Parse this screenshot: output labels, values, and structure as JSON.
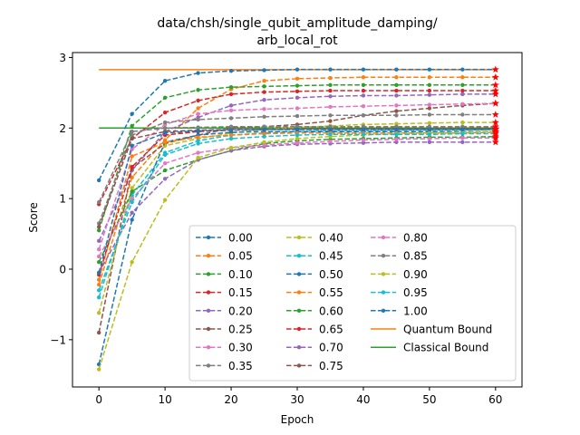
{
  "chart_data": {
    "type": "line",
    "title_line1": "data/chsh/single_qubit_amplitude_damping/",
    "title_line2": "arb_local_rot",
    "xlabel": "Epoch",
    "ylabel": "Score",
    "xlim": [
      -4,
      64
    ],
    "ylim": [
      -1.67,
      3.07
    ],
    "xticks": [
      0,
      10,
      20,
      30,
      40,
      50,
      60
    ],
    "yticks": [
      -1,
      0,
      1,
      2,
      3
    ],
    "x": [
      0,
      5,
      10,
      15,
      20,
      25,
      30,
      35,
      40,
      45,
      50,
      55,
      60
    ],
    "legend_position": "lower-right",
    "legend_columns": 3,
    "grid": false,
    "series": [
      {
        "name": "0.00",
        "color": "#1f77b4",
        "values": [
          1.26,
          2.2,
          2.67,
          2.78,
          2.81,
          2.82,
          2.83,
          2.83,
          2.83,
          2.83,
          2.83,
          2.83,
          2.83
        ]
      },
      {
        "name": "0.05",
        "color": "#ff7f0e",
        "values": [
          -0.22,
          1.3,
          1.83,
          2.28,
          2.55,
          2.67,
          2.7,
          2.71,
          2.72,
          2.72,
          2.72,
          2.72,
          2.72
        ]
      },
      {
        "name": "0.10",
        "color": "#2ca02c",
        "values": [
          0.55,
          2.03,
          2.43,
          2.54,
          2.58,
          2.59,
          2.6,
          2.61,
          2.61,
          2.61,
          2.61,
          2.61,
          2.61
        ]
      },
      {
        "name": "0.15",
        "color": "#d62728",
        "values": [
          0.92,
          1.85,
          2.22,
          2.39,
          2.48,
          2.51,
          2.52,
          2.53,
          2.53,
          2.53,
          2.53,
          2.53,
          2.53
        ]
      },
      {
        "name": "0.20",
        "color": "#9467bd",
        "values": [
          0.4,
          1.4,
          1.95,
          2.15,
          2.32,
          2.4,
          2.43,
          2.45,
          2.46,
          2.46,
          2.47,
          2.48,
          2.48
        ]
      },
      {
        "name": "0.25",
        "color": "#8c564b",
        "values": [
          -0.9,
          1.43,
          1.78,
          1.9,
          2.0,
          2.02,
          2.05,
          2.1,
          2.18,
          2.24,
          2.28,
          2.32,
          2.35
        ]
      },
      {
        "name": "0.30",
        "color": "#e377c2",
        "values": [
          0.28,
          1.7,
          2.05,
          2.2,
          2.25,
          2.27,
          2.28,
          2.3,
          2.31,
          2.32,
          2.33,
          2.34,
          2.35
        ]
      },
      {
        "name": "0.35",
        "color": "#7f7f7f",
        "values": [
          0.65,
          1.9,
          2.08,
          2.12,
          2.14,
          2.16,
          2.17,
          2.18,
          2.18,
          2.18,
          2.19,
          2.19,
          2.19
        ]
      },
      {
        "name": "0.40",
        "color": "#bcbd22",
        "values": [
          -0.62,
          1.15,
          1.75,
          1.85,
          1.93,
          1.98,
          2.01,
          2.03,
          2.05,
          2.06,
          2.07,
          2.08,
          2.08
        ]
      },
      {
        "name": "0.45",
        "color": "#17becf",
        "values": [
          -0.4,
          1.05,
          1.65,
          1.82,
          1.9,
          1.93,
          1.95,
          1.96,
          1.96,
          1.97,
          1.97,
          1.97,
          1.98
        ]
      },
      {
        "name": "0.50",
        "color": "#1f77b4",
        "values": [
          -1.35,
          0.7,
          1.8,
          1.9,
          1.94,
          1.95,
          1.95,
          1.95,
          1.95,
          1.95,
          1.95,
          1.95,
          1.95
        ]
      },
      {
        "name": "0.55",
        "color": "#ff7f0e",
        "values": [
          -0.15,
          1.6,
          1.8,
          1.87,
          1.9,
          1.92,
          1.93,
          1.93,
          1.93,
          1.93,
          1.93,
          1.93,
          1.94
        ]
      },
      {
        "name": "0.60",
        "color": "#2ca02c",
        "values": [
          0.1,
          1.1,
          1.4,
          1.55,
          1.68,
          1.78,
          1.82,
          1.84,
          1.85,
          1.86,
          1.87,
          1.87,
          1.88
        ]
      },
      {
        "name": "0.65",
        "color": "#d62728",
        "values": [
          -0.08,
          1.45,
          1.9,
          1.95,
          1.97,
          1.98,
          1.98,
          1.98,
          1.99,
          1.99,
          1.99,
          1.99,
          1.99
        ]
      },
      {
        "name": "0.70",
        "color": "#9467bd",
        "values": [
          -0.05,
          0.8,
          1.28,
          1.55,
          1.68,
          1.74,
          1.77,
          1.78,
          1.79,
          1.8,
          1.8,
          1.8,
          1.8
        ]
      },
      {
        "name": "0.75",
        "color": "#8c564b",
        "values": [
          0.6,
          1.85,
          1.95,
          1.97,
          1.98,
          1.98,
          1.99,
          1.99,
          1.99,
          1.99,
          1.99,
          1.99,
          1.99
        ]
      },
      {
        "name": "0.80",
        "color": "#e377c2",
        "values": [
          0.18,
          1.0,
          1.5,
          1.65,
          1.72,
          1.76,
          1.79,
          1.81,
          1.83,
          1.84,
          1.85,
          1.86,
          1.86
        ]
      },
      {
        "name": "0.85",
        "color": "#7f7f7f",
        "values": [
          0.95,
          1.95,
          2.0,
          2.01,
          2.02,
          2.02,
          2.02,
          2.02,
          2.02,
          2.02,
          2.02,
          2.02,
          2.02
        ]
      },
      {
        "name": "0.90",
        "color": "#bcbd22",
        "values": [
          -1.42,
          0.1,
          0.98,
          1.58,
          1.72,
          1.8,
          1.85,
          1.88,
          1.9,
          1.92,
          1.93,
          1.94,
          1.95
        ]
      },
      {
        "name": "0.95",
        "color": "#17becf",
        "values": [
          -0.3,
          0.95,
          1.62,
          1.78,
          1.85,
          1.88,
          1.9,
          1.91,
          1.91,
          1.91,
          1.91,
          1.92,
          1.92
        ]
      },
      {
        "name": "1.00",
        "color": "#1f77b4",
        "values": [
          -0.05,
          1.75,
          1.93,
          1.96,
          1.97,
          1.98,
          1.98,
          1.98,
          1.98,
          1.98,
          1.98,
          1.98,
          1.98
        ]
      }
    ],
    "bounds": [
      {
        "name": "Quantum Bound",
        "color": "#ff7f0e",
        "value": 2.828
      },
      {
        "name": "Classical Bound",
        "color": "#2ca02c",
        "value": 2.0
      }
    ]
  }
}
